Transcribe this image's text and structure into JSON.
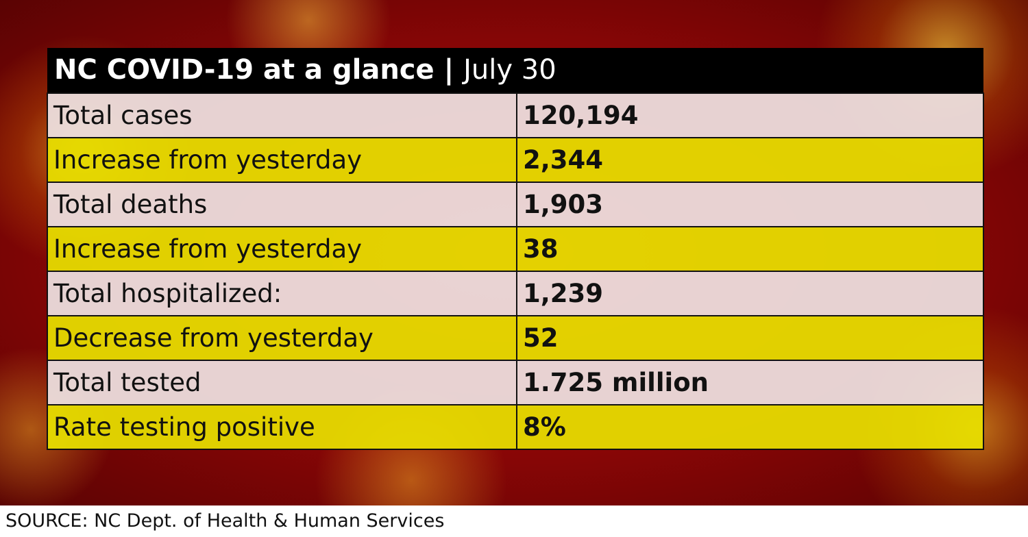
{
  "header": {
    "title": "NC COVID-19 at a glance",
    "separator": "|",
    "date": "July 30"
  },
  "table": {
    "rows": [
      [
        "Total cases",
        "120,194"
      ],
      [
        "Increase from yesterday",
        "2,344"
      ],
      [
        "Total deaths",
        "1,903"
      ],
      [
        "Increase from yesterday",
        "38"
      ],
      [
        "Total hospitalized:",
        "1,239"
      ],
      [
        "Decrease from yesterday",
        "52"
      ],
      [
        "Total tested",
        "1.725 million"
      ],
      [
        "Rate testing positive",
        "8%"
      ]
    ]
  },
  "footer": {
    "source": "SOURCE: NC Dept. of Health & Human Services"
  }
}
